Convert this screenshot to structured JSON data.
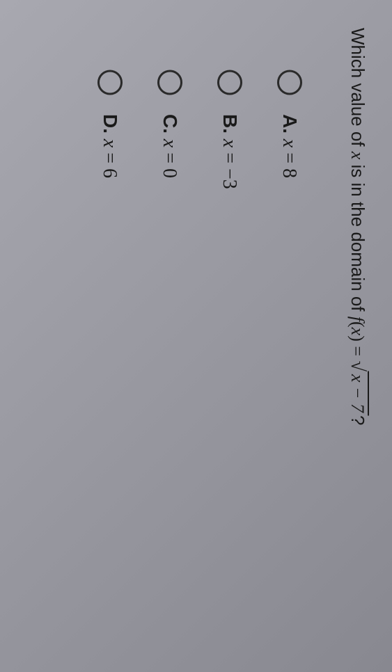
{
  "question": {
    "prefix": "Which value of ",
    "variable": "x",
    "middle": " is in the domain of ",
    "function_name": "f",
    "function_var": "x",
    "equals": " = ",
    "sqrt_content": "x − 7",
    "suffix": "?"
  },
  "options": [
    {
      "letter": "A.",
      "variable": "x",
      "equals": " = ",
      "value": "8"
    },
    {
      "letter": "B.",
      "variable": "x",
      "equals": " = ",
      "value": "−3"
    },
    {
      "letter": "C.",
      "variable": "x",
      "equals": " = ",
      "value": "0"
    },
    {
      "letter": "D.",
      "variable": "x",
      "equals": " = ",
      "value": "6"
    }
  ],
  "styling": {
    "background_gradient_start": "#a8a8b0",
    "background_gradient_end": "#888890",
    "text_color": "#1a1a1a",
    "radio_border_color": "#2a2a2a",
    "question_fontsize": 26,
    "option_fontsize": 28,
    "radio_size": 36,
    "option_spacing": 50
  }
}
